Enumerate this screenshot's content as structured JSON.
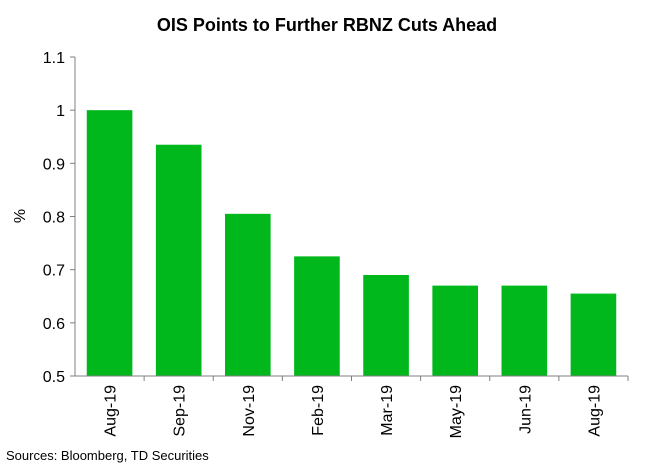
{
  "chart_data": {
    "type": "bar",
    "title": "OIS Points to Further RBNZ Cuts Ahead",
    "xlabel": "",
    "ylabel": "%",
    "categories": [
      "Aug-19",
      "Sep-19",
      "Nov-19",
      "Feb-19",
      "Mar-19",
      "May-19",
      "Jun-19",
      "Aug-19"
    ],
    "values": [
      1.0,
      0.935,
      0.805,
      0.725,
      0.69,
      0.67,
      0.67,
      0.655
    ],
    "ylim": [
      0.5,
      1.1
    ],
    "yticks": [
      "0.5",
      "0.6",
      "0.7",
      "0.8",
      "0.9",
      "1",
      "1.1"
    ],
    "grid": false,
    "legend": "none",
    "bar_color": "#00b81c",
    "source": "Sources: Bloomberg, TD Securities"
  }
}
